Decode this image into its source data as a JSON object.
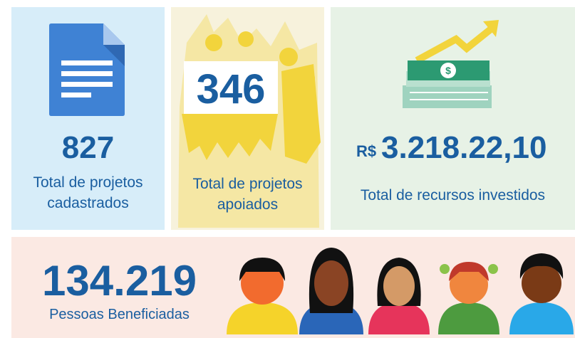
{
  "cards": [
    {
      "value": "827",
      "label_lines": [
        "Total de projetos",
        "cadastrados"
      ]
    },
    {
      "value": "346",
      "label_lines": [
        "Total de projetos",
        "apoiados"
      ]
    },
    {
      "currency": "R$",
      "value": "3.218.22,10",
      "label_lines": [
        "Total de recursos investidos"
      ]
    }
  ],
  "beneficiaries": {
    "value": "134.219",
    "label": "Pessoas Beneficiadas"
  }
}
